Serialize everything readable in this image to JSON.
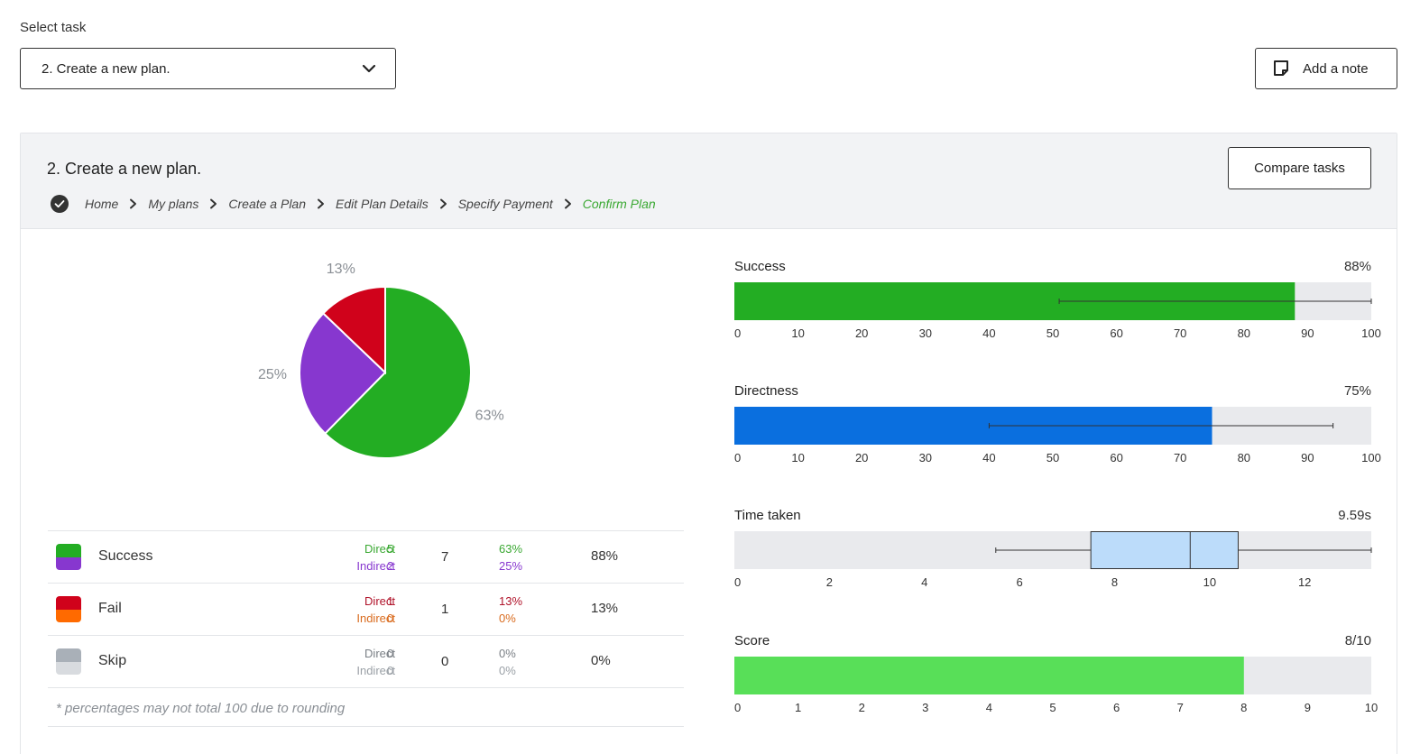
{
  "select_task": {
    "label": "Select task",
    "value": "2. Create a new plan."
  },
  "add_note_label": "Add a note",
  "panel": {
    "title": "2. Create a new plan.",
    "compare_label": "Compare tasks",
    "breadcrumbs": [
      "Home",
      "My plans",
      "Create a Plan",
      "Edit Plan Details",
      "Specify Payment",
      "Confirm Plan"
    ]
  },
  "chart_data": [
    {
      "type": "pie",
      "labels": [
        "Success (direct)",
        "Success (indirect)",
        "Fail (direct)"
      ],
      "values": [
        63,
        25,
        13
      ],
      "value_labels": [
        "63%",
        "25%",
        "13%"
      ],
      "colors": [
        "#23ad23",
        "#8737cf",
        "#d0021b"
      ]
    },
    {
      "type": "bar",
      "title": "Success",
      "value": 88,
      "value_text": "88%",
      "ylim": [
        0,
        100
      ],
      "ticks": [
        0,
        10,
        20,
        30,
        40,
        50,
        60,
        70,
        80,
        90,
        100
      ],
      "error_range": [
        51,
        100
      ],
      "color": "#23ad23"
    },
    {
      "type": "bar",
      "title": "Directness",
      "value": 75,
      "value_text": "75%",
      "ylim": [
        0,
        100
      ],
      "ticks": [
        0,
        10,
        20,
        30,
        40,
        50,
        60,
        70,
        80,
        90,
        100
      ],
      "error_range": [
        40,
        94
      ],
      "color": "#0a6fdf"
    },
    {
      "type": "box",
      "title": "Time taken",
      "value_text": "9.59s",
      "ylim": [
        0,
        13.4
      ],
      "ticks": [
        0,
        2,
        4,
        6,
        8,
        10,
        12
      ],
      "whisker_low": 5.5,
      "q1": 7.5,
      "median": 9.59,
      "q3": 10.6,
      "whisker_high": 13.4,
      "color": "#bcdcfa"
    },
    {
      "type": "bar",
      "title": "Score",
      "value": 8,
      "value_text": "8/10",
      "ylim": [
        0,
        10
      ],
      "ticks": [
        0,
        1,
        2,
        3,
        4,
        5,
        6,
        7,
        8,
        9,
        10
      ],
      "color": "#58df58"
    }
  ],
  "results_table": {
    "rows": [
      {
        "name": "Success",
        "colors": [
          "#23ad23",
          "#8737cf"
        ],
        "direct_label": "Direct",
        "indirect_label": "Indirect",
        "direct": "5",
        "indirect": "2",
        "total": "7",
        "direct_pct": "63%",
        "indirect_pct": "25%",
        "overall_pct": "88%",
        "direct_color": "#3aa832",
        "indirect_color": "#8737cf"
      },
      {
        "name": "Fail",
        "colors": [
          "#d0021b",
          "#ff6a00"
        ],
        "direct_label": "Direct",
        "indirect_label": "Indirect",
        "direct": "1",
        "indirect": "0",
        "total": "1",
        "direct_pct": "13%",
        "indirect_pct": "0%",
        "overall_pct": "13%",
        "direct_color": "#b0132a",
        "indirect_color": "#d96b1e"
      },
      {
        "name": "Skip",
        "colors": [
          "#a9b0b8",
          "#d8dbdf"
        ],
        "direct_label": "Direct",
        "indirect_label": "Indirect",
        "direct": "0",
        "indirect": "0",
        "total": "0",
        "direct_pct": "0%",
        "indirect_pct": "0%",
        "overall_pct": "0%",
        "direct_color": "#7a7f85",
        "indirect_color": "#9aa0a6"
      }
    ],
    "footnote": "* percentages may not total 100 due to rounding"
  }
}
